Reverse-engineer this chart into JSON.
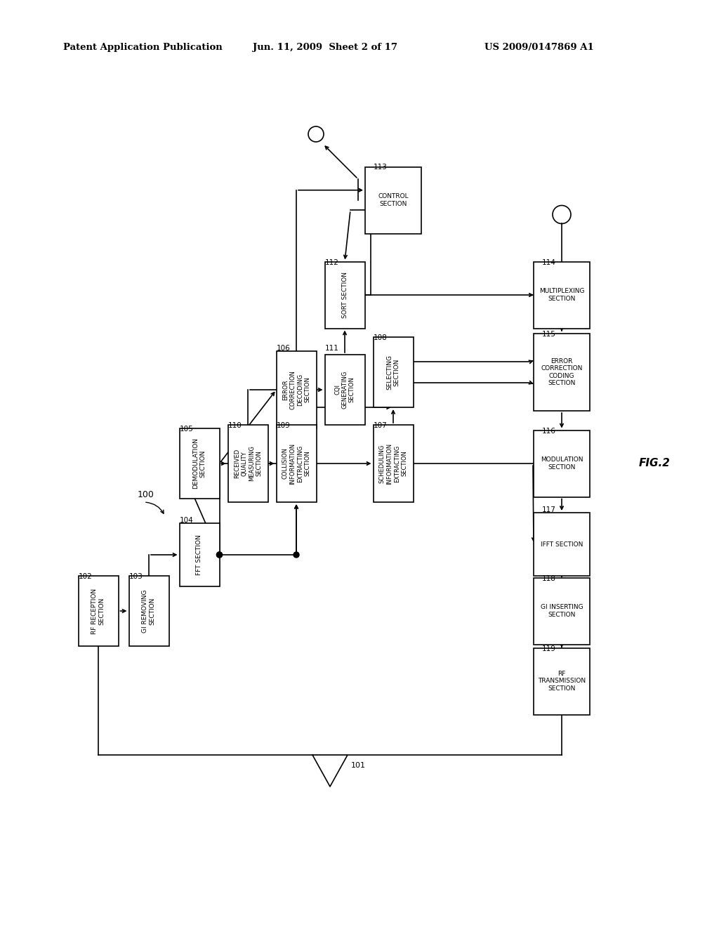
{
  "header_left": "Patent Application Publication",
  "header_mid": "Jun. 11, 2009  Sheet 2 of 17",
  "header_right": "US 2009/0147869 A1",
  "fig_label": "FIG.2",
  "background": "#ffffff"
}
